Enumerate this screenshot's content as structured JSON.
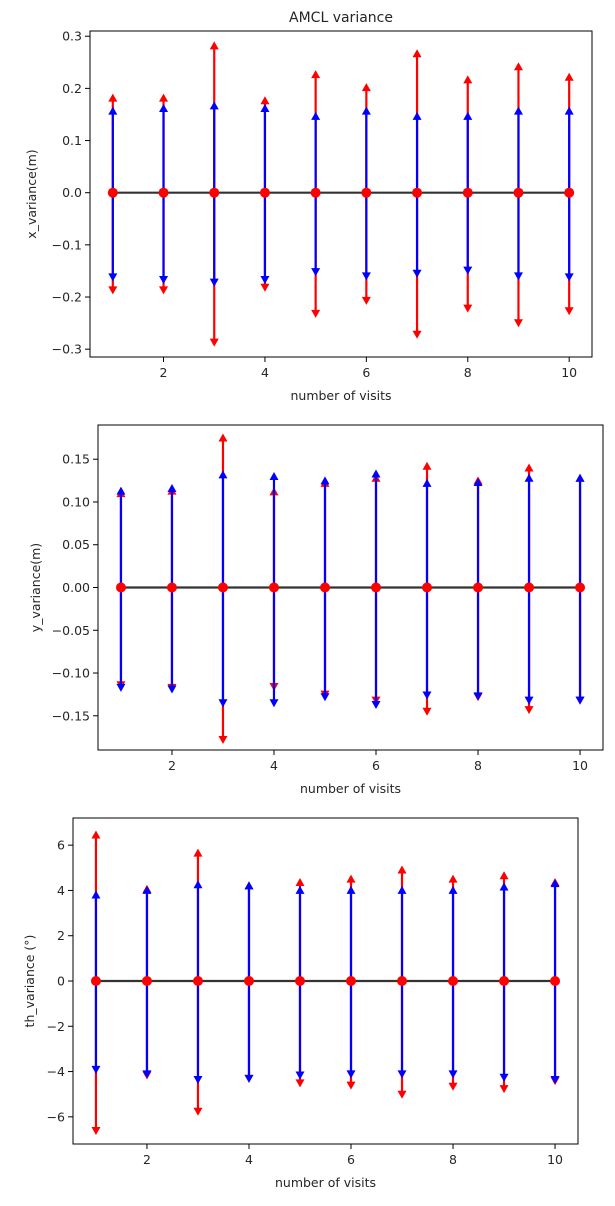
{
  "chart_data": [
    {
      "type": "error-arrow-plot",
      "title": "AMCL variance",
      "xlabel": "number of visits",
      "ylabel": "x_variance(m)",
      "x": [
        1,
        2,
        3,
        4,
        5,
        6,
        7,
        8,
        9,
        10
      ],
      "xlim": [
        0.55,
        10.45
      ],
      "ylim": [
        -0.315,
        0.31
      ],
      "xticks": [
        2,
        4,
        6,
        8,
        10
      ],
      "yticks": [
        -0.3,
        -0.2,
        -0.1,
        0.0,
        0.1,
        0.2,
        0.3
      ],
      "ytick_labels": [
        "−0.3",
        "−0.2",
        "−0.1",
        "0.0",
        "0.1",
        "0.2",
        "0.3"
      ],
      "center_values": [
        0,
        0,
        0,
        0,
        0,
        0,
        0,
        0,
        0,
        0
      ],
      "series": [
        {
          "color": "#ff0000",
          "upper": [
            0.19,
            0.19,
            0.29,
            0.185,
            0.235,
            0.21,
            0.275,
            0.225,
            0.25,
            0.23
          ],
          "lower": [
            -0.195,
            -0.195,
            -0.295,
            -0.19,
            -0.24,
            -0.215,
            -0.28,
            -0.23,
            -0.258,
            -0.235
          ]
        },
        {
          "color": "#0000ff",
          "upper": [
            0.165,
            0.17,
            0.175,
            0.17,
            0.155,
            0.165,
            0.155,
            0.155,
            0.165,
            0.165
          ],
          "lower": [
            -0.17,
            -0.175,
            -0.18,
            -0.175,
            -0.16,
            -0.168,
            -0.163,
            -0.157,
            -0.168,
            -0.17
          ]
        }
      ]
    },
    {
      "type": "error-arrow-plot",
      "title": "",
      "xlabel": "number of visits",
      "ylabel": "y_variance(m)",
      "x": [
        1,
        2,
        3,
        4,
        5,
        6,
        7,
        8,
        9,
        10
      ],
      "xlim": [
        0.55,
        10.45
      ],
      "ylim": [
        -0.19,
        0.19
      ],
      "xticks": [
        2,
        4,
        6,
        8,
        10
      ],
      "yticks": [
        -0.15,
        -0.1,
        -0.05,
        0.0,
        0.05,
        0.1,
        0.15
      ],
      "ytick_labels": [
        "−0.15",
        "−0.10",
        "−0.05",
        "0.00",
        "0.05",
        "0.10",
        "0.15"
      ],
      "center_values": [
        0,
        0,
        0,
        0,
        0,
        0,
        0,
        0,
        0,
        0
      ],
      "series": [
        {
          "color": "#ff0000",
          "upper": [
            0.115,
            0.118,
            0.18,
            0.117,
            0.127,
            0.133,
            0.147,
            0.13,
            0.145,
            0.133
          ],
          "lower": [
            -0.119,
            -0.122,
            -0.183,
            -0.121,
            -0.13,
            -0.137,
            -0.15,
            -0.133,
            -0.148,
            -0.137
          ]
        },
        {
          "color": "#0000ff",
          "upper": [
            0.118,
            0.121,
            0.137,
            0.135,
            0.13,
            0.138,
            0.127,
            0.128,
            0.133,
            0.133
          ],
          "lower": [
            -0.122,
            -0.124,
            -0.14,
            -0.14,
            -0.133,
            -0.142,
            -0.131,
            -0.132,
            -0.137,
            -0.137
          ]
        }
      ]
    },
    {
      "type": "error-arrow-plot",
      "title": "",
      "xlabel": "number of visits",
      "ylabel": "th_variance (°)",
      "x": [
        1,
        2,
        3,
        4,
        5,
        6,
        7,
        8,
        9,
        10
      ],
      "xlim": [
        0.55,
        10.45
      ],
      "ylim": [
        -7.2,
        7.2
      ],
      "xticks": [
        2,
        4,
        6,
        8,
        10
      ],
      "yticks": [
        -6,
        -4,
        -2,
        0,
        2,
        4,
        6
      ],
      "ytick_labels": [
        "−6",
        "−4",
        "−2",
        "0",
        "2",
        "4",
        "6"
      ],
      "center_values": [
        0,
        0,
        0,
        0,
        0,
        0,
        0,
        0,
        0,
        0
      ],
      "series": [
        {
          "color": "#ff0000",
          "upper": [
            6.65,
            4.25,
            5.85,
            4.4,
            4.55,
            4.7,
            5.1,
            4.7,
            4.85,
            4.55
          ],
          "lower": [
            -6.8,
            -4.35,
            -5.95,
            -4.5,
            -4.7,
            -4.8,
            -5.2,
            -4.85,
            -4.95,
            -4.6
          ]
        },
        {
          "color": "#0000ff",
          "upper": [
            4.0,
            4.2,
            4.45,
            4.4,
            4.2,
            4.2,
            4.2,
            4.2,
            4.35,
            4.5
          ],
          "lower": [
            -4.1,
            -4.3,
            -4.55,
            -4.5,
            -4.35,
            -4.3,
            -4.3,
            -4.3,
            -4.45,
            -4.55
          ]
        }
      ]
    }
  ]
}
